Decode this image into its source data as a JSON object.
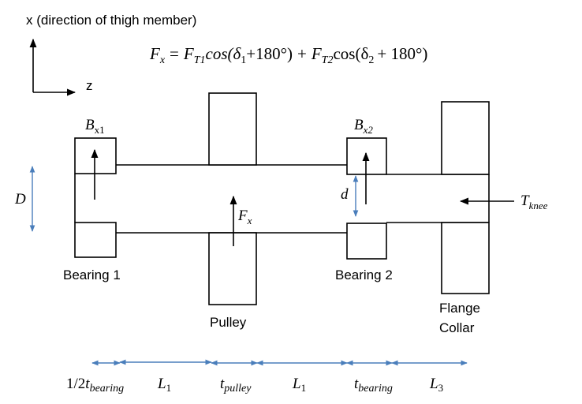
{
  "axes": {
    "x_label": "x (direction of thigh member)",
    "z_label": "z"
  },
  "equation": {
    "lhs_var": "F",
    "lhs_sub": "x",
    "eq": "=",
    "t1_var": "F",
    "t1_sub": "T1",
    "t1_func": "cos(δ",
    "t1_sub2": "1",
    "t1_tail": "+180°)",
    "plus": "+",
    "t2_var": "F",
    "t2_sub": "T2",
    "t2_func": "cos(δ",
    "t2_sub2": "2",
    "t2_tail": "+ 180°)"
  },
  "labels": {
    "bx1_var": "B",
    "bx1_sub": "x1",
    "bx2_var": "B",
    "bx2_sub": "x2",
    "fx_var": "F",
    "fx_sub": "x",
    "D": "D",
    "d": "d",
    "tknee_var": "T",
    "tknee_sub": "knee",
    "bearing1": "Bearing 1",
    "bearing2": "Bearing 2",
    "pulley": "Pulley",
    "flange_line1": "Flange",
    "flange_line2": "Collar"
  },
  "dimensions": {
    "half_t_bearing_pre": "1/2",
    "half_t_bearing_var": "t",
    "half_t_bearing_sub": "bearing",
    "L1_a_var": "L",
    "L1_a_sub": "1",
    "t_pulley_var": "t",
    "t_pulley_sub": "pulley",
    "L1_b_var": "L",
    "L1_b_sub": "1",
    "t_bearing_var": "t",
    "t_bearing_sub": "bearing",
    "L3_var": "L",
    "L3_sub": "3"
  },
  "colors": {
    "dimension_arrow": "#4a7ebb"
  }
}
